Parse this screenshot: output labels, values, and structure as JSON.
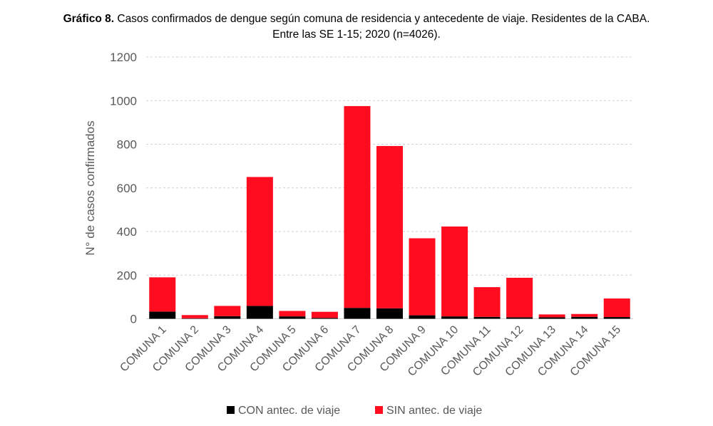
{
  "chart_data": {
    "type": "bar",
    "stacked": true,
    "title_bold": "Gráfico 8.",
    "title_line1": " Casos confirmados de dengue según comuna de residencia y antecedente de viaje. Residentes de la CABA.",
    "title_line2": "Entre las SE 1-15; 2020 (n=4026).",
    "xlabel": "",
    "ylabel": "N° de casos confirmados",
    "ylim": [
      0,
      1200
    ],
    "yticks": [
      0,
      200,
      400,
      600,
      800,
      1000,
      1200
    ],
    "grid": true,
    "legend_position": "bottom",
    "categories": [
      "COMUNA 1",
      "COMUNA 2",
      "COMUNA 3",
      "COMUNA 4",
      "COMUNA 5",
      "COMUNA 6",
      "COMUNA 7",
      "COMUNA 8",
      "COMUNA 9",
      "COMUNA 10",
      "COMUNA 11",
      "COMUNA 12",
      "COMUNA 13",
      "COMUNA 14",
      "COMUNA 15"
    ],
    "series": [
      {
        "name": "CON antec. de viaje",
        "color": "#000000",
        "values": [
          33,
          2,
          12,
          59,
          11,
          4,
          50,
          48,
          16,
          11,
          9,
          7,
          7,
          9,
          8
        ]
      },
      {
        "name": "SIN antec. de viaje",
        "color": "#FF0D1F",
        "values": [
          157,
          15,
          47,
          591,
          25,
          28,
          925,
          744,
          353,
          412,
          136,
          181,
          13,
          13,
          85
        ]
      }
    ]
  }
}
